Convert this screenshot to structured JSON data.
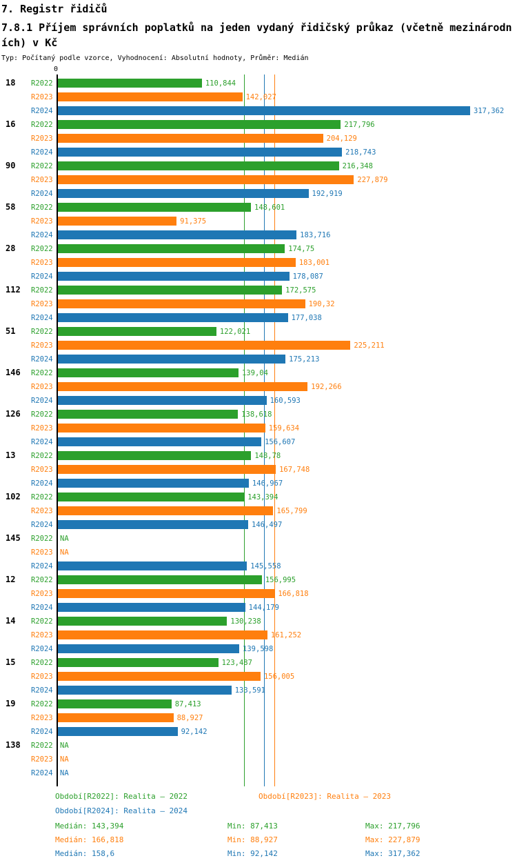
{
  "header": {
    "title": "7. Registr řidičů",
    "subtitle": "7.8.1 Příjem správních poplatků na jeden vydaný řidičský průkaz (včetně mezinárodních) v Kč",
    "meta": "Typ: Počítaný podle vzorce, Vyhodnocení: Absolutní hodnoty, Průměr: Medián"
  },
  "chart_data": {
    "type": "bar",
    "orientation": "horizontal",
    "title": "7.8.1 Příjem správních poplatků na jeden vydaný řidičský průkaz (včetně mezinárodních) v Kč",
    "axis": {
      "zero_label": "0",
      "data_max": 317.362
    },
    "grid": false,
    "legend_position": "bottom",
    "categories": [
      "18",
      "16",
      "90",
      "58",
      "28",
      "112",
      "51",
      "146",
      "126",
      "13",
      "102",
      "145",
      "12",
      "14",
      "15",
      "19",
      "138"
    ],
    "series": [
      {
        "name": "R2022",
        "color": "#2ca02c",
        "values": [
          110.844,
          217.796,
          216.348,
          148.601,
          174.75,
          172.575,
          122.021,
          139.04,
          138.618,
          148.78,
          143.394,
          null,
          156.995,
          130.238,
          123.487,
          87.413,
          null
        ],
        "labels": [
          "110,844",
          "217,796",
          "216,348",
          "148,601",
          "174,75",
          "172,575",
          "122,021",
          "139,04",
          "138,618",
          "148,78",
          "143,394",
          "NA",
          "156,995",
          "130,238",
          "123,487",
          "87,413",
          "NA"
        ]
      },
      {
        "name": "R2023",
        "color": "#ff7f0e",
        "values": [
          142.027,
          204.129,
          227.879,
          91.375,
          183.001,
          190.32,
          225.211,
          192.266,
          159.634,
          167.748,
          165.799,
          null,
          166.818,
          161.252,
          156.005,
          88.927,
          null
        ],
        "labels": [
          "142,027",
          "204,129",
          "227,879",
          "91,375",
          "183,001",
          "190,32",
          "225,211",
          "192,266",
          "159,634",
          "167,748",
          "165,799",
          "NA",
          "166,818",
          "161,252",
          "156,005",
          "88,927",
          "NA"
        ]
      },
      {
        "name": "R2024",
        "color": "#1f77b4",
        "values": [
          317.362,
          218.743,
          192.919,
          183.716,
          178.087,
          177.038,
          175.213,
          160.593,
          156.607,
          146.967,
          146.497,
          145.558,
          144.179,
          139.598,
          133.591,
          92.142,
          null
        ],
        "labels": [
          "317,362",
          "218,743",
          "192,919",
          "183,716",
          "178,087",
          "177,038",
          "175,213",
          "160,593",
          "156,607",
          "146,967",
          "146,497",
          "145,558",
          "144,179",
          "139,598",
          "133,591",
          "92,142",
          "NA"
        ]
      }
    ],
    "median_lines": [
      {
        "series": "R2022",
        "value": 143.394,
        "color": "#2ca02c"
      },
      {
        "series": "R2024",
        "value": 158.6,
        "color": "#1f77b4"
      },
      {
        "series": "R2023",
        "value": 166.818,
        "color": "#ff7f0e"
      }
    ]
  },
  "legend": [
    {
      "label": "Období[R2022]: Realita – 2022",
      "color": "#2ca02c"
    },
    {
      "label": "Období[R2023]: Realita – 2023",
      "color": "#ff7f0e"
    },
    {
      "label": "Období[R2024]: Realita – 2024",
      "color": "#1f77b4"
    }
  ],
  "stats": [
    {
      "median": "Medián: 143,394",
      "min": "Min: 87,413",
      "max": "Max: 217,796",
      "color": "#2ca02c"
    },
    {
      "median": "Medián: 166,818",
      "min": "Min: 88,927",
      "max": "Max: 227,879",
      "color": "#ff7f0e"
    },
    {
      "median": "Medián: 158,6",
      "min": "Min: 92,142",
      "max": "Max: 317,362",
      "color": "#1f77b4"
    }
  ]
}
